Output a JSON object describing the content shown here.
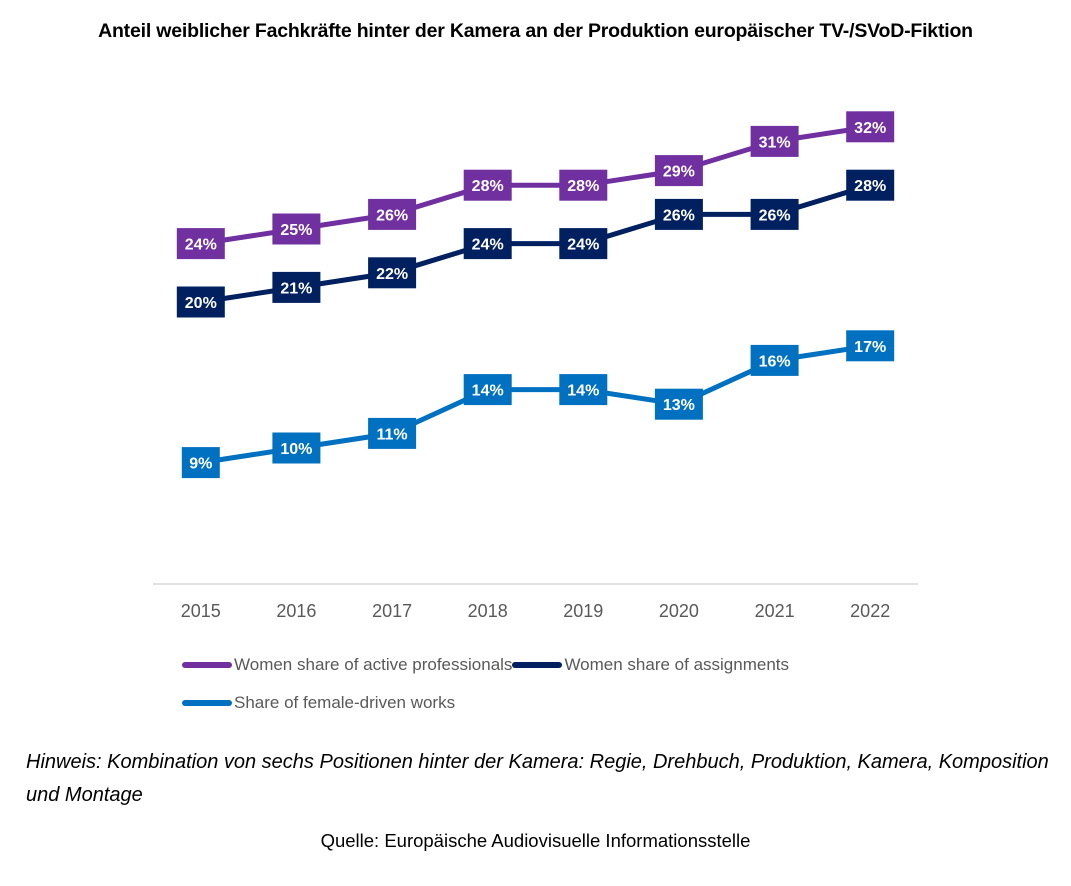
{
  "title": "Anteil weiblicher Fachkräfte hinter der Kamera an der Produktion europäischer TV-/SVoD-Fiktion",
  "note": "Hinweis: Kombination von sechs Positionen hinter der Kamera: Regie, Drehbuch, Produktion, Kamera, Komposition und Montage",
  "source": "Quelle: Europäische Audiovisuelle Informationsstelle",
  "chart_data": {
    "type": "line",
    "title": "Anteil weiblicher Fachkräfte hinter der Kamera an der Produktion europäischer TV-/SVoD-Fiktion",
    "xlabel": "",
    "ylabel": "",
    "x": [
      "2015",
      "2016",
      "2017",
      "2018",
      "2019",
      "2020",
      "2021",
      "2022"
    ],
    "ylim": [
      0,
      35
    ],
    "grid": false,
    "legend_position": "bottom",
    "value_format": "percent",
    "series": [
      {
        "name": "Women share of active professionals",
        "color": "#7030A0",
        "values": [
          24,
          25,
          26,
          28,
          28,
          29,
          31,
          32
        ],
        "labels": [
          "24%",
          "25%",
          "26%",
          "28%",
          "28%",
          "29%",
          "31%",
          "32%"
        ]
      },
      {
        "name": "Women share of assignments",
        "color": "#002060",
        "values": [
          20,
          21,
          22,
          24,
          24,
          26,
          26,
          28
        ],
        "labels": [
          "20%",
          "21%",
          "22%",
          "24%",
          "24%",
          "26%",
          "26%",
          "28%"
        ]
      },
      {
        "name": "Share of female-driven works",
        "color": "#0070C0",
        "values": [
          9,
          10,
          11,
          14,
          14,
          13,
          16,
          17
        ],
        "labels": [
          "9%",
          "10%",
          "11%",
          "14%",
          "14%",
          "13%",
          "16%",
          "17%"
        ]
      }
    ]
  }
}
